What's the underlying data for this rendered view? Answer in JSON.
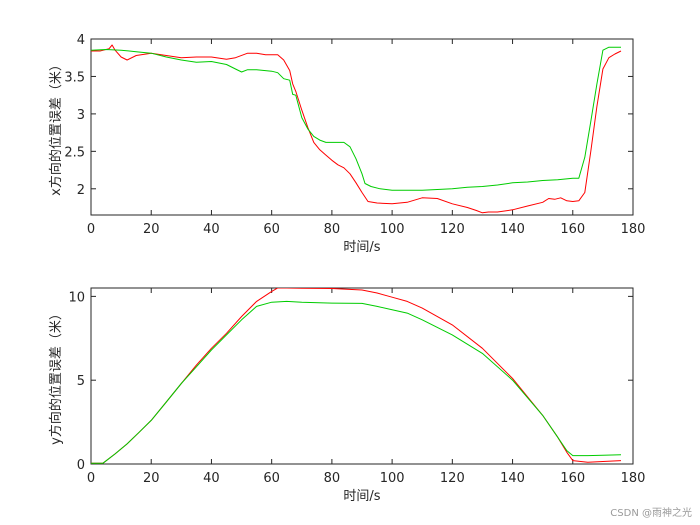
{
  "chart_data": [
    {
      "type": "line",
      "title": "",
      "xlabel": "时间/s",
      "ylabel": "x方向的位置误差（米）",
      "xlim": [
        0,
        180
      ],
      "ylim": [
        1.65,
        4.0
      ],
      "xticks": [
        0,
        20,
        40,
        60,
        80,
        100,
        120,
        140,
        160,
        180
      ],
      "yticks": [
        2,
        2.5,
        3,
        3.5,
        4
      ],
      "grid": false,
      "series": [
        {
          "color": "#ff0000",
          "x": [
            0,
            3,
            6,
            7,
            8,
            10,
            12,
            15,
            20,
            25,
            30,
            35,
            40,
            45,
            48,
            52,
            55,
            58,
            62,
            64,
            66,
            67,
            68,
            70,
            72,
            74,
            76,
            78,
            80,
            82,
            84,
            86,
            88,
            90,
            92,
            95,
            100,
            105,
            110,
            115,
            120,
            125,
            128,
            130,
            132,
            135,
            140,
            145,
            150,
            152,
            154,
            156,
            158,
            160,
            162,
            164,
            166,
            168,
            170,
            172,
            174,
            176
          ],
          "y": [
            3.84,
            3.84,
            3.87,
            3.92,
            3.85,
            3.76,
            3.72,
            3.78,
            3.81,
            3.78,
            3.75,
            3.76,
            3.76,
            3.73,
            3.75,
            3.81,
            3.81,
            3.79,
            3.79,
            3.72,
            3.58,
            3.4,
            3.3,
            3.05,
            2.82,
            2.62,
            2.52,
            2.45,
            2.38,
            2.32,
            2.28,
            2.2,
            2.08,
            1.95,
            1.83,
            1.81,
            1.8,
            1.82,
            1.88,
            1.87,
            1.8,
            1.75,
            1.71,
            1.68,
            1.69,
            1.69,
            1.72,
            1.77,
            1.82,
            1.87,
            1.86,
            1.88,
            1.84,
            1.83,
            1.84,
            1.95,
            2.5,
            3.1,
            3.6,
            3.75,
            3.8,
            3.84
          ]
        },
        {
          "color": "#00cc00",
          "x": [
            0,
            5,
            10,
            15,
            20,
            25,
            30,
            35,
            40,
            45,
            48,
            50,
            52,
            55,
            60,
            62,
            64,
            66,
            67,
            68,
            70,
            72,
            74,
            76,
            78,
            80,
            82,
            84,
            86,
            88,
            90,
            91,
            93,
            96,
            100,
            105,
            110,
            115,
            120,
            125,
            130,
            135,
            140,
            145,
            150,
            155,
            160,
            162,
            164,
            166,
            168,
            170,
            172,
            174,
            176
          ],
          "y": [
            3.85,
            3.86,
            3.85,
            3.83,
            3.81,
            3.76,
            3.72,
            3.69,
            3.7,
            3.66,
            3.6,
            3.56,
            3.59,
            3.59,
            3.57,
            3.55,
            3.47,
            3.45,
            3.26,
            3.25,
            2.95,
            2.8,
            2.7,
            2.65,
            2.62,
            2.62,
            2.62,
            2.62,
            2.56,
            2.4,
            2.2,
            2.07,
            2.03,
            2.0,
            1.98,
            1.98,
            1.98,
            1.99,
            2.0,
            2.02,
            2.03,
            2.05,
            2.08,
            2.09,
            2.11,
            2.12,
            2.14,
            2.14,
            2.42,
            2.9,
            3.4,
            3.85,
            3.89,
            3.89,
            3.89
          ]
        }
      ]
    },
    {
      "type": "line",
      "title": "",
      "xlabel": "时间/s",
      "ylabel": "y方向的位置误差（米）",
      "xlim": [
        0,
        180
      ],
      "ylim": [
        0,
        10.5
      ],
      "xticks": [
        0,
        20,
        40,
        60,
        80,
        100,
        120,
        140,
        160,
        180
      ],
      "yticks": [
        0,
        5,
        10
      ],
      "grid": false,
      "series": [
        {
          "color": "#ff0000",
          "x": [
            0,
            4,
            8,
            12,
            16,
            20,
            25,
            30,
            35,
            40,
            45,
            50,
            55,
            60,
            62,
            65,
            70,
            80,
            90,
            95,
            100,
            105,
            110,
            120,
            130,
            140,
            150,
            155,
            158,
            160,
            165,
            170,
            176
          ],
          "y": [
            0.05,
            0.05,
            0.6,
            1.2,
            1.9,
            2.6,
            3.7,
            4.8,
            5.9,
            6.9,
            7.8,
            8.8,
            9.7,
            10.3,
            10.5,
            10.5,
            10.48,
            10.47,
            10.38,
            10.2,
            9.95,
            9.7,
            9.3,
            8.3,
            6.9,
            5.1,
            2.9,
            1.6,
            0.7,
            0.2,
            0.1,
            0.15,
            0.2
          ]
        },
        {
          "color": "#00cc00",
          "x": [
            0,
            4,
            8,
            12,
            16,
            20,
            25,
            30,
            35,
            40,
            45,
            50,
            55,
            60,
            65,
            70,
            80,
            90,
            95,
            100,
            105,
            110,
            120,
            130,
            140,
            150,
            155,
            158,
            160,
            165,
            170,
            176
          ],
          "y": [
            0.05,
            0.05,
            0.6,
            1.2,
            1.9,
            2.6,
            3.7,
            4.8,
            5.8,
            6.8,
            7.7,
            8.6,
            9.4,
            9.65,
            9.7,
            9.65,
            9.6,
            9.58,
            9.4,
            9.2,
            9.0,
            8.6,
            7.7,
            6.6,
            5.0,
            2.9,
            1.6,
            0.8,
            0.5,
            0.5,
            0.52,
            0.55
          ]
        }
      ]
    }
  ],
  "watermark": "CSDN @雨神之光"
}
